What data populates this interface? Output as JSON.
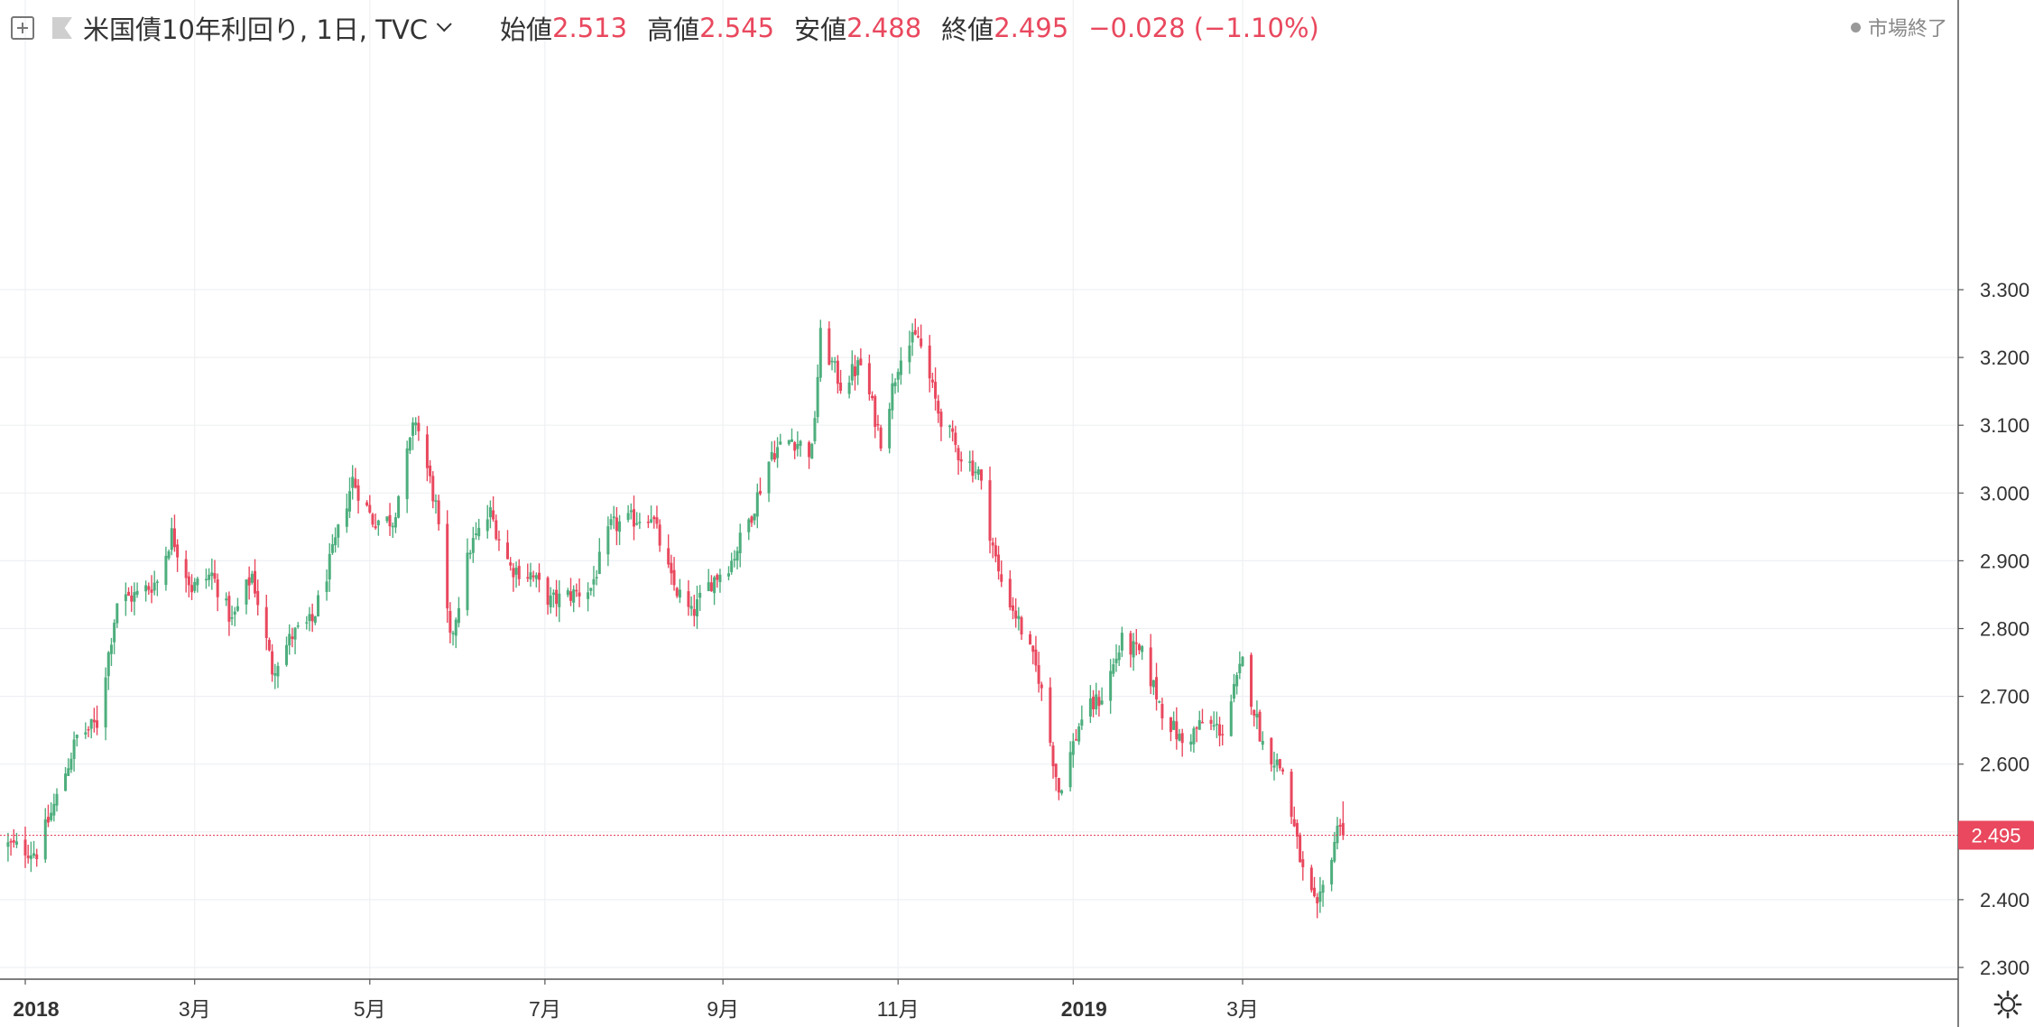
{
  "legend": {
    "symbol_title": "米国債10年利回り, 1日, TVC",
    "open_label": "始値",
    "open_value": "2.513",
    "high_label": "高値",
    "high_value": "2.545",
    "low_label": "安値",
    "low_value": "2.488",
    "close_label": "終値",
    "close_value": "2.495",
    "change": "−0.028 (−1.10%)"
  },
  "market_status": "市場終了",
  "icons": {
    "add": "add-symbol-icon",
    "flag": "flag-icon",
    "dropdown": "chevron-down-icon",
    "settings": "gear-icon"
  },
  "colors": {
    "up": "#4dae7d",
    "down": "#e9485e",
    "price_line": "#e9485e",
    "grid": "#eef0f3",
    "axis_text": "#333333"
  },
  "chart_data": {
    "type": "candlestick",
    "symbol": "米国債10年利回り",
    "interval": "1日",
    "source": "TVC",
    "y_axis": {
      "min": 2.3,
      "max": 3.3,
      "ticks": [
        2.3,
        2.4,
        2.5,
        2.6,
        2.7,
        2.8,
        2.9,
        3.0,
        3.1,
        3.2,
        3.3
      ],
      "tick_labels": [
        "2.300",
        "2.400",
        "2.500",
        "2.600",
        "2.700",
        "2.800",
        "2.900",
        "3.000",
        "3.100",
        "3.200",
        "3.300"
      ]
    },
    "x_axis": {
      "ticks": [
        {
          "date": "2018-01-01",
          "label": "2018",
          "bold": true
        },
        {
          "date": "2018-03-01",
          "label": "3月"
        },
        {
          "date": "2018-05-01",
          "label": "5月"
        },
        {
          "date": "2018-07-01",
          "label": "7月"
        },
        {
          "date": "2018-09-01",
          "label": "9月"
        },
        {
          "date": "2018-11-01",
          "label": "11月"
        },
        {
          "date": "2019-01-01",
          "label": "2019",
          "bold": true
        },
        {
          "date": "2019-03-01",
          "label": "3月"
        }
      ]
    },
    "last_price": 2.495,
    "last_price_label": "2.495",
    "series_close": [
      [
        "2017-12-26",
        2.48
      ],
      [
        "2018-01-05",
        2.47
      ],
      [
        "2018-01-12",
        2.55
      ],
      [
        "2018-01-19",
        2.64
      ],
      [
        "2018-01-26",
        2.66
      ],
      [
        "2018-02-02",
        2.84
      ],
      [
        "2018-02-09",
        2.85
      ],
      [
        "2018-02-16",
        2.87
      ],
      [
        "2018-02-21",
        2.94
      ],
      [
        "2018-02-28",
        2.86
      ],
      [
        "2018-03-07",
        2.88
      ],
      [
        "2018-03-14",
        2.81
      ],
      [
        "2018-03-21",
        2.88
      ],
      [
        "2018-03-28",
        2.74
      ],
      [
        "2018-04-04",
        2.79
      ],
      [
        "2018-04-11",
        2.81
      ],
      [
        "2018-04-18",
        2.91
      ],
      [
        "2018-04-25",
        3.02
      ],
      [
        "2018-05-02",
        2.96
      ],
      [
        "2018-05-09",
        2.96
      ],
      [
        "2018-05-17",
        3.11
      ],
      [
        "2018-05-24",
        2.98
      ],
      [
        "2018-05-29",
        2.78
      ],
      [
        "2018-06-05",
        2.92
      ],
      [
        "2018-06-12",
        2.97
      ],
      [
        "2018-06-19",
        2.89
      ],
      [
        "2018-06-26",
        2.88
      ],
      [
        "2018-07-03",
        2.84
      ],
      [
        "2018-07-10",
        2.85
      ],
      [
        "2018-07-17",
        2.86
      ],
      [
        "2018-07-24",
        2.95
      ],
      [
        "2018-07-31",
        2.96
      ],
      [
        "2018-08-07",
        2.97
      ],
      [
        "2018-08-14",
        2.87
      ],
      [
        "2018-08-21",
        2.82
      ],
      [
        "2018-08-28",
        2.87
      ],
      [
        "2018-09-04",
        2.9
      ],
      [
        "2018-09-11",
        2.97
      ],
      [
        "2018-09-18",
        3.06
      ],
      [
        "2018-09-25",
        3.08
      ],
      [
        "2018-10-02",
        3.06
      ],
      [
        "2018-10-05",
        3.23
      ],
      [
        "2018-10-12",
        3.16
      ],
      [
        "2018-10-19",
        3.19
      ],
      [
        "2018-10-26",
        3.08
      ],
      [
        "2018-11-02",
        3.21
      ],
      [
        "2018-11-08",
        3.23
      ],
      [
        "2018-11-15",
        3.12
      ],
      [
        "2018-11-22",
        3.06
      ],
      [
        "2018-11-29",
        3.03
      ],
      [
        "2018-12-06",
        2.88
      ],
      [
        "2018-12-13",
        2.81
      ],
      [
        "2018-12-20",
        2.73
      ],
      [
        "2018-12-27",
        2.56
      ],
      [
        "2019-01-04",
        2.67
      ],
      [
        "2019-01-11",
        2.7
      ],
      [
        "2019-01-18",
        2.78
      ],
      [
        "2019-01-25",
        2.76
      ],
      [
        "2019-02-01",
        2.68
      ],
      [
        "2019-02-08",
        2.63
      ],
      [
        "2019-02-15",
        2.66
      ],
      [
        "2019-02-22",
        2.65
      ],
      [
        "2019-03-01",
        2.75
      ],
      [
        "2019-03-08",
        2.63
      ],
      [
        "2019-03-15",
        2.59
      ],
      [
        "2019-03-22",
        2.44
      ],
      [
        "2019-03-27",
        2.38
      ],
      [
        "2019-04-01",
        2.47
      ],
      [
        "2019-04-04",
        2.52
      ],
      [
        "2019-04-05",
        2.495
      ]
    ],
    "last_bar": {
      "open": 2.513,
      "high": 2.545,
      "low": 2.488,
      "close": 2.495
    }
  }
}
